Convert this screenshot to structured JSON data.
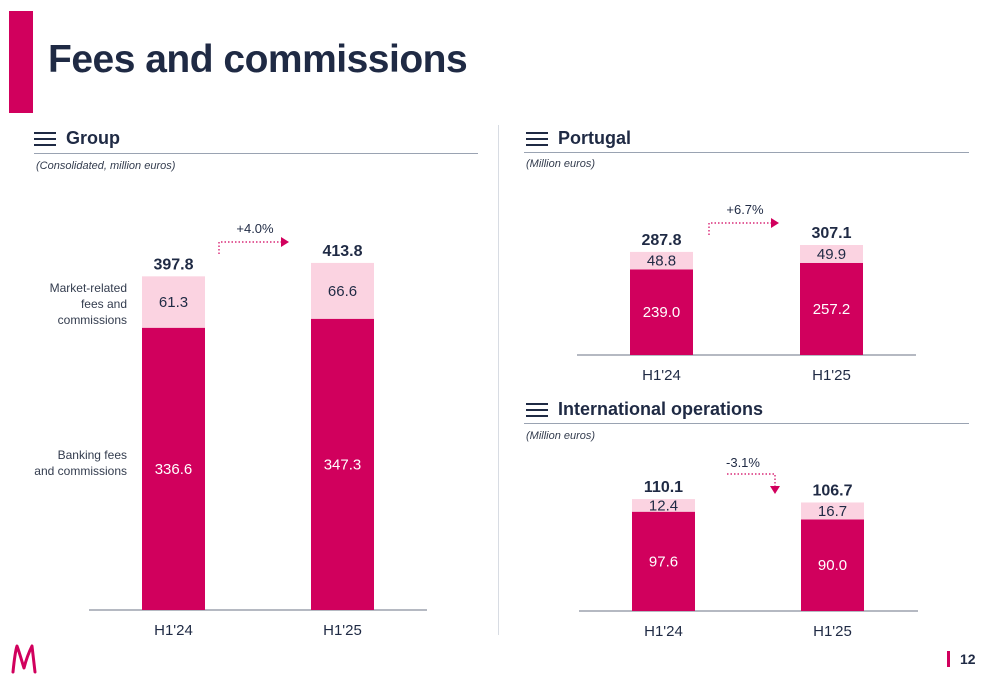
{
  "page": {
    "title": "Fees and commissions",
    "page_number": "12",
    "colors": {
      "accent": "#d1005d",
      "light": "#fbd3e1",
      "navy": "#1f2a44"
    },
    "icons": {
      "section": "hamburger-menu-icon",
      "logo": "millennium-m-logo"
    }
  },
  "group": {
    "heading": "Group",
    "subtitle": "(Consolidated, million euros)",
    "row_labels": [
      "Market-related\nfees and\ncommissions",
      "Banking fees\nand commissions"
    ]
  },
  "portugal": {
    "heading": "Portugal",
    "subtitle": "(Million euros)"
  },
  "international": {
    "heading": "International operations",
    "subtitle": "(Million euros)"
  },
  "chart_data": [
    {
      "id": "group",
      "type": "bar",
      "stacked": true,
      "categories": [
        "H1'24",
        "H1'25"
      ],
      "series": [
        {
          "name": "Banking fees and commissions",
          "values": [
            336.6,
            347.3
          ],
          "labels": [
            "336.6",
            "347.3"
          ]
        },
        {
          "name": "Market-related fees and commissions",
          "values": [
            61.3,
            66.6
          ],
          "labels": [
            "61.3",
            "66.6"
          ]
        }
      ],
      "totals": [
        397.8,
        413.8
      ],
      "total_labels": [
        "397.8",
        "413.8"
      ],
      "change": "+4.0%",
      "change_direction": "up",
      "ylim": [
        0,
        413.8
      ]
    },
    {
      "id": "portugal",
      "type": "bar",
      "stacked": true,
      "categories": [
        "H1'24",
        "H1'25"
      ],
      "series": [
        {
          "values": [
            239.0,
            257.2
          ],
          "labels": [
            "239.0",
            "257.2"
          ]
        },
        {
          "values": [
            48.8,
            49.9
          ],
          "labels": [
            "48.8",
            "49.9"
          ]
        }
      ],
      "totals": [
        287.8,
        307.1
      ],
      "total_labels": [
        "287.8",
        "307.1"
      ],
      "change": "+6.7%",
      "change_direction": "up",
      "ylim": [
        0,
        307.1
      ]
    },
    {
      "id": "international",
      "type": "bar",
      "stacked": true,
      "categories": [
        "H1'24",
        "H1'25"
      ],
      "series": [
        {
          "values": [
            97.6,
            90.0
          ],
          "labels": [
            "97.6",
            "90.0"
          ]
        },
        {
          "values": [
            12.4,
            16.7
          ],
          "labels": [
            "12.4",
            "16.7"
          ]
        }
      ],
      "totals": [
        110.1,
        106.7
      ],
      "total_labels": [
        "110.1",
        "106.7"
      ],
      "change": "-3.1%",
      "change_direction": "down",
      "ylim": [
        0,
        110.1
      ]
    }
  ]
}
